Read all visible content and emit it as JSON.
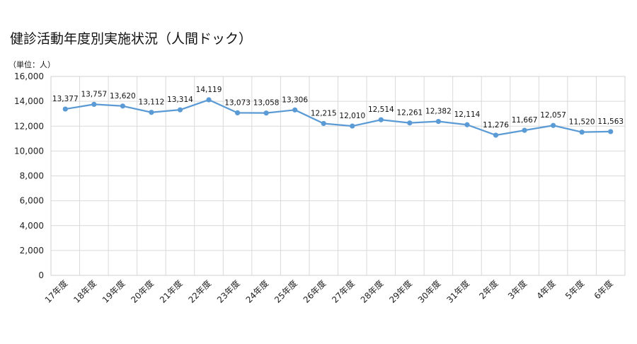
{
  "chart_data": {
    "type": "line",
    "title": "健診活動年度別実施状況（人間ドック）",
    "unit_label": "（単位：人）",
    "categories": [
      "17年度",
      "18年度",
      "19年度",
      "20年度",
      "21年度",
      "22年度",
      "23年度",
      "24年度",
      "25年度",
      "26年度",
      "27年度",
      "28年度",
      "29年度",
      "30年度",
      "31年度",
      "2年度",
      "3年度",
      "4年度",
      "5年度",
      "6年度"
    ],
    "series": [
      {
        "values": [
          13377,
          13757,
          13620,
          13112,
          13314,
          14119,
          13073,
          13058,
          13306,
          12215,
          12010,
          12514,
          12261,
          12382,
          12114,
          11276,
          11667,
          12057,
          11520,
          11563
        ],
        "labels": [
          "13,377",
          "13,757",
          "13,620",
          "13,112",
          "13,314",
          "14,119",
          "13,073",
          "13,058",
          "13,306",
          "12,215",
          "12,010",
          "12,514",
          "12,261",
          "12,382",
          "12,114",
          "11,276",
          "11,667",
          "12,057",
          "11,520",
          "11,563"
        ],
        "color": "#5b9bd5"
      }
    ],
    "yticks": [
      "0",
      "2,000",
      "4,000",
      "6,000",
      "8,000",
      "10,000",
      "12,000",
      "14,000",
      "16,000"
    ],
    "ylim": [
      0,
      16000
    ],
    "grid": true,
    "legend": "none"
  }
}
